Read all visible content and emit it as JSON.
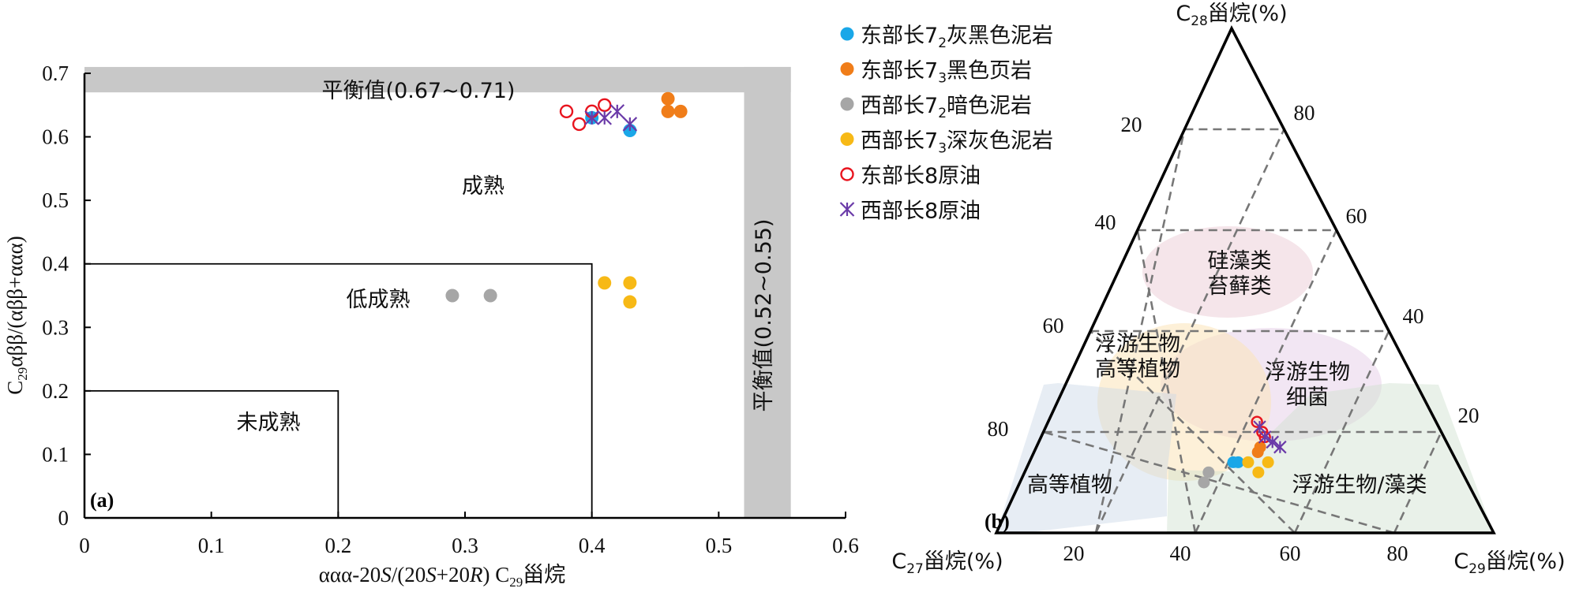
{
  "colors": {
    "east_c72": "#1aa7e8",
    "east_c73": "#f07d19",
    "west_c72": "#a6a6a6",
    "west_c73": "#f7b916",
    "east_c8_oil": "#e8141e",
    "west_c8_oil": "#6a3aa8",
    "band": "#c8c8c8"
  },
  "legend": [
    {
      "pre": "东部长7",
      "sub": "2",
      "post": "灰黑色泥岩",
      "color": "#1aa7e8",
      "marker": "dot"
    },
    {
      "pre": "东部长7",
      "sub": "3",
      "post": "黑色页岩",
      "color": "#f07d19",
      "marker": "dot"
    },
    {
      "pre": "西部长7",
      "sub": "2",
      "post": "暗色泥岩",
      "color": "#a6a6a6",
      "marker": "dot"
    },
    {
      "pre": "西部长7",
      "sub": "3",
      "post": "深灰色泥岩",
      "color": "#f7b916",
      "marker": "dot"
    },
    {
      "pre": "东部长8原油",
      "sub": "",
      "post": "",
      "color": "#e8141e",
      "marker": "ring"
    },
    {
      "pre": "西部长8原油",
      "sub": "",
      "post": "",
      "color": "#6a3aa8",
      "marker": "star"
    }
  ],
  "panel_a": {
    "label": "(a)",
    "xlabel": {
      "pre": "ααα-20",
      "s1": "S",
      "mid": "/(20",
      "s2": "S",
      "mid2": "+20",
      "r": "R",
      "post": ") C",
      "sub": "29",
      "tail": "甾烷"
    },
    "ylabel": {
      "pre": "C",
      "sub": "29",
      "post": "αββ/(αββ+ααα)"
    },
    "xticks": [
      "0",
      "0.1",
      "0.2",
      "0.3",
      "0.4",
      "0.5",
      "0.6"
    ],
    "yticks": [
      "0",
      "0.1",
      "0.2",
      "0.3",
      "0.4",
      "0.5",
      "0.6",
      "0.7"
    ],
    "horizontal_band_label": "平衡值(0.67~0.71)",
    "vertical_band_label": "平衡值(0.52~0.55)",
    "zone_mature": "成熟",
    "zone_low_mature": "低成熟",
    "zone_immature": "未成熟"
  },
  "panel_b": {
    "label": "(b)",
    "apex_top": {
      "pre": "C",
      "sub": "28",
      "post": "甾烷(%)"
    },
    "apex_left": {
      "pre": "C",
      "sub": "27",
      "post": "甾烷(%)"
    },
    "apex_right": {
      "pre": "C",
      "sub": "29",
      "post": "甾烷(%)"
    },
    "left_side_ticks": [
      "20",
      "40",
      "60",
      "80"
    ],
    "right_side_ticks": [
      "80",
      "60",
      "40",
      "20"
    ],
    "bottom_ticks": [
      "20",
      "40",
      "60",
      "80"
    ],
    "region_diatom_1": "硅藻类",
    "region_diatom_2": "苔藓类",
    "region_plankton_plant_1": "浮游生物",
    "region_plankton_plant_2": "高等植物",
    "region_plankton_bacteria_1": "浮游生物",
    "region_plankton_bacteria_2": "细菌",
    "region_higher_plants": "高等植物",
    "region_plankton_algae": "浮游生物/藻类"
  },
  "chart_data": [
    {
      "type": "scatter",
      "panel": "a",
      "xlabel": "ααα-20S/(20S+20R) C29甾烷",
      "ylabel": "C29αββ/(αββ+ααα)",
      "xlim": [
        0,
        0.6
      ],
      "ylim": [
        0,
        0.7
      ],
      "grid": false,
      "series": [
        {
          "name": "东部长72灰黑色泥岩",
          "points": [
            [
              0.4,
              0.63
            ],
            [
              0.43,
              0.61
            ]
          ]
        },
        {
          "name": "东部长73黑色页岩",
          "points": [
            [
              0.46,
              0.66
            ],
            [
              0.46,
              0.64
            ],
            [
              0.47,
              0.64
            ]
          ]
        },
        {
          "name": "西部长72暗色泥岩",
          "points": [
            [
              0.29,
              0.35
            ],
            [
              0.32,
              0.35
            ]
          ]
        },
        {
          "name": "西部长73深灰色泥岩",
          "points": [
            [
              0.41,
              0.37
            ],
            [
              0.43,
              0.37
            ],
            [
              0.43,
              0.34
            ]
          ]
        },
        {
          "name": "东部长8原油",
          "points": [
            [
              0.38,
              0.64
            ],
            [
              0.39,
              0.62
            ],
            [
              0.4,
              0.64
            ],
            [
              0.41,
              0.65
            ]
          ]
        },
        {
          "name": "西部长8原油",
          "points": [
            [
              0.4,
              0.63
            ],
            [
              0.41,
              0.63
            ],
            [
              0.42,
              0.64
            ],
            [
              0.43,
              0.62
            ]
          ]
        }
      ],
      "bands": [
        {
          "axis": "y",
          "range": [
            0.67,
            0.71
          ]
        },
        {
          "axis": "x",
          "range": [
            0.52,
            0.55
          ]
        }
      ],
      "zones": [
        {
          "name": "未成熟",
          "x": [
            0,
            0.2
          ],
          "y": [
            0,
            0.2
          ]
        },
        {
          "name": "低成熟",
          "x": [
            0,
            0.4
          ],
          "y": [
            0,
            0.4
          ]
        }
      ]
    },
    {
      "type": "scatter",
      "subtype": "ternary",
      "panel": "b",
      "axes": [
        "C27甾烷(%)",
        "C28甾烷(%)",
        "C29甾烷(%)"
      ],
      "series": [
        {
          "name": "东部长72灰黑色泥岩",
          "points": [
            [
              45,
              14,
              41
            ],
            [
              44,
              14,
              42
            ]
          ]
        },
        {
          "name": "东部长73黑色页岩",
          "points": [
            [
              39,
              16,
              45
            ],
            [
              38,
              17,
              45
            ]
          ]
        },
        {
          "name": "西部长72暗色泥岩",
          "points": [
            [
              51,
              12,
              37
            ],
            [
              53,
              10,
              37
            ]
          ]
        },
        {
          "name": "西部长73深灰色泥岩",
          "points": [
            [
              42,
              14,
              44
            ],
            [
              41,
              12,
              47
            ],
            [
              38,
              14,
              48
            ]
          ]
        },
        {
          "name": "东部长8原油",
          "points": [
            [
              36,
              22,
              42
            ],
            [
              36,
              20,
              44
            ],
            [
              36,
              19,
              45
            ]
          ]
        },
        {
          "name": "西部长8原油",
          "points": [
            [
              36,
              21,
              43
            ],
            [
              36,
              19,
              45
            ],
            [
              35,
              18,
              47
            ],
            [
              34,
              17,
              49
            ]
          ]
        }
      ]
    }
  ]
}
